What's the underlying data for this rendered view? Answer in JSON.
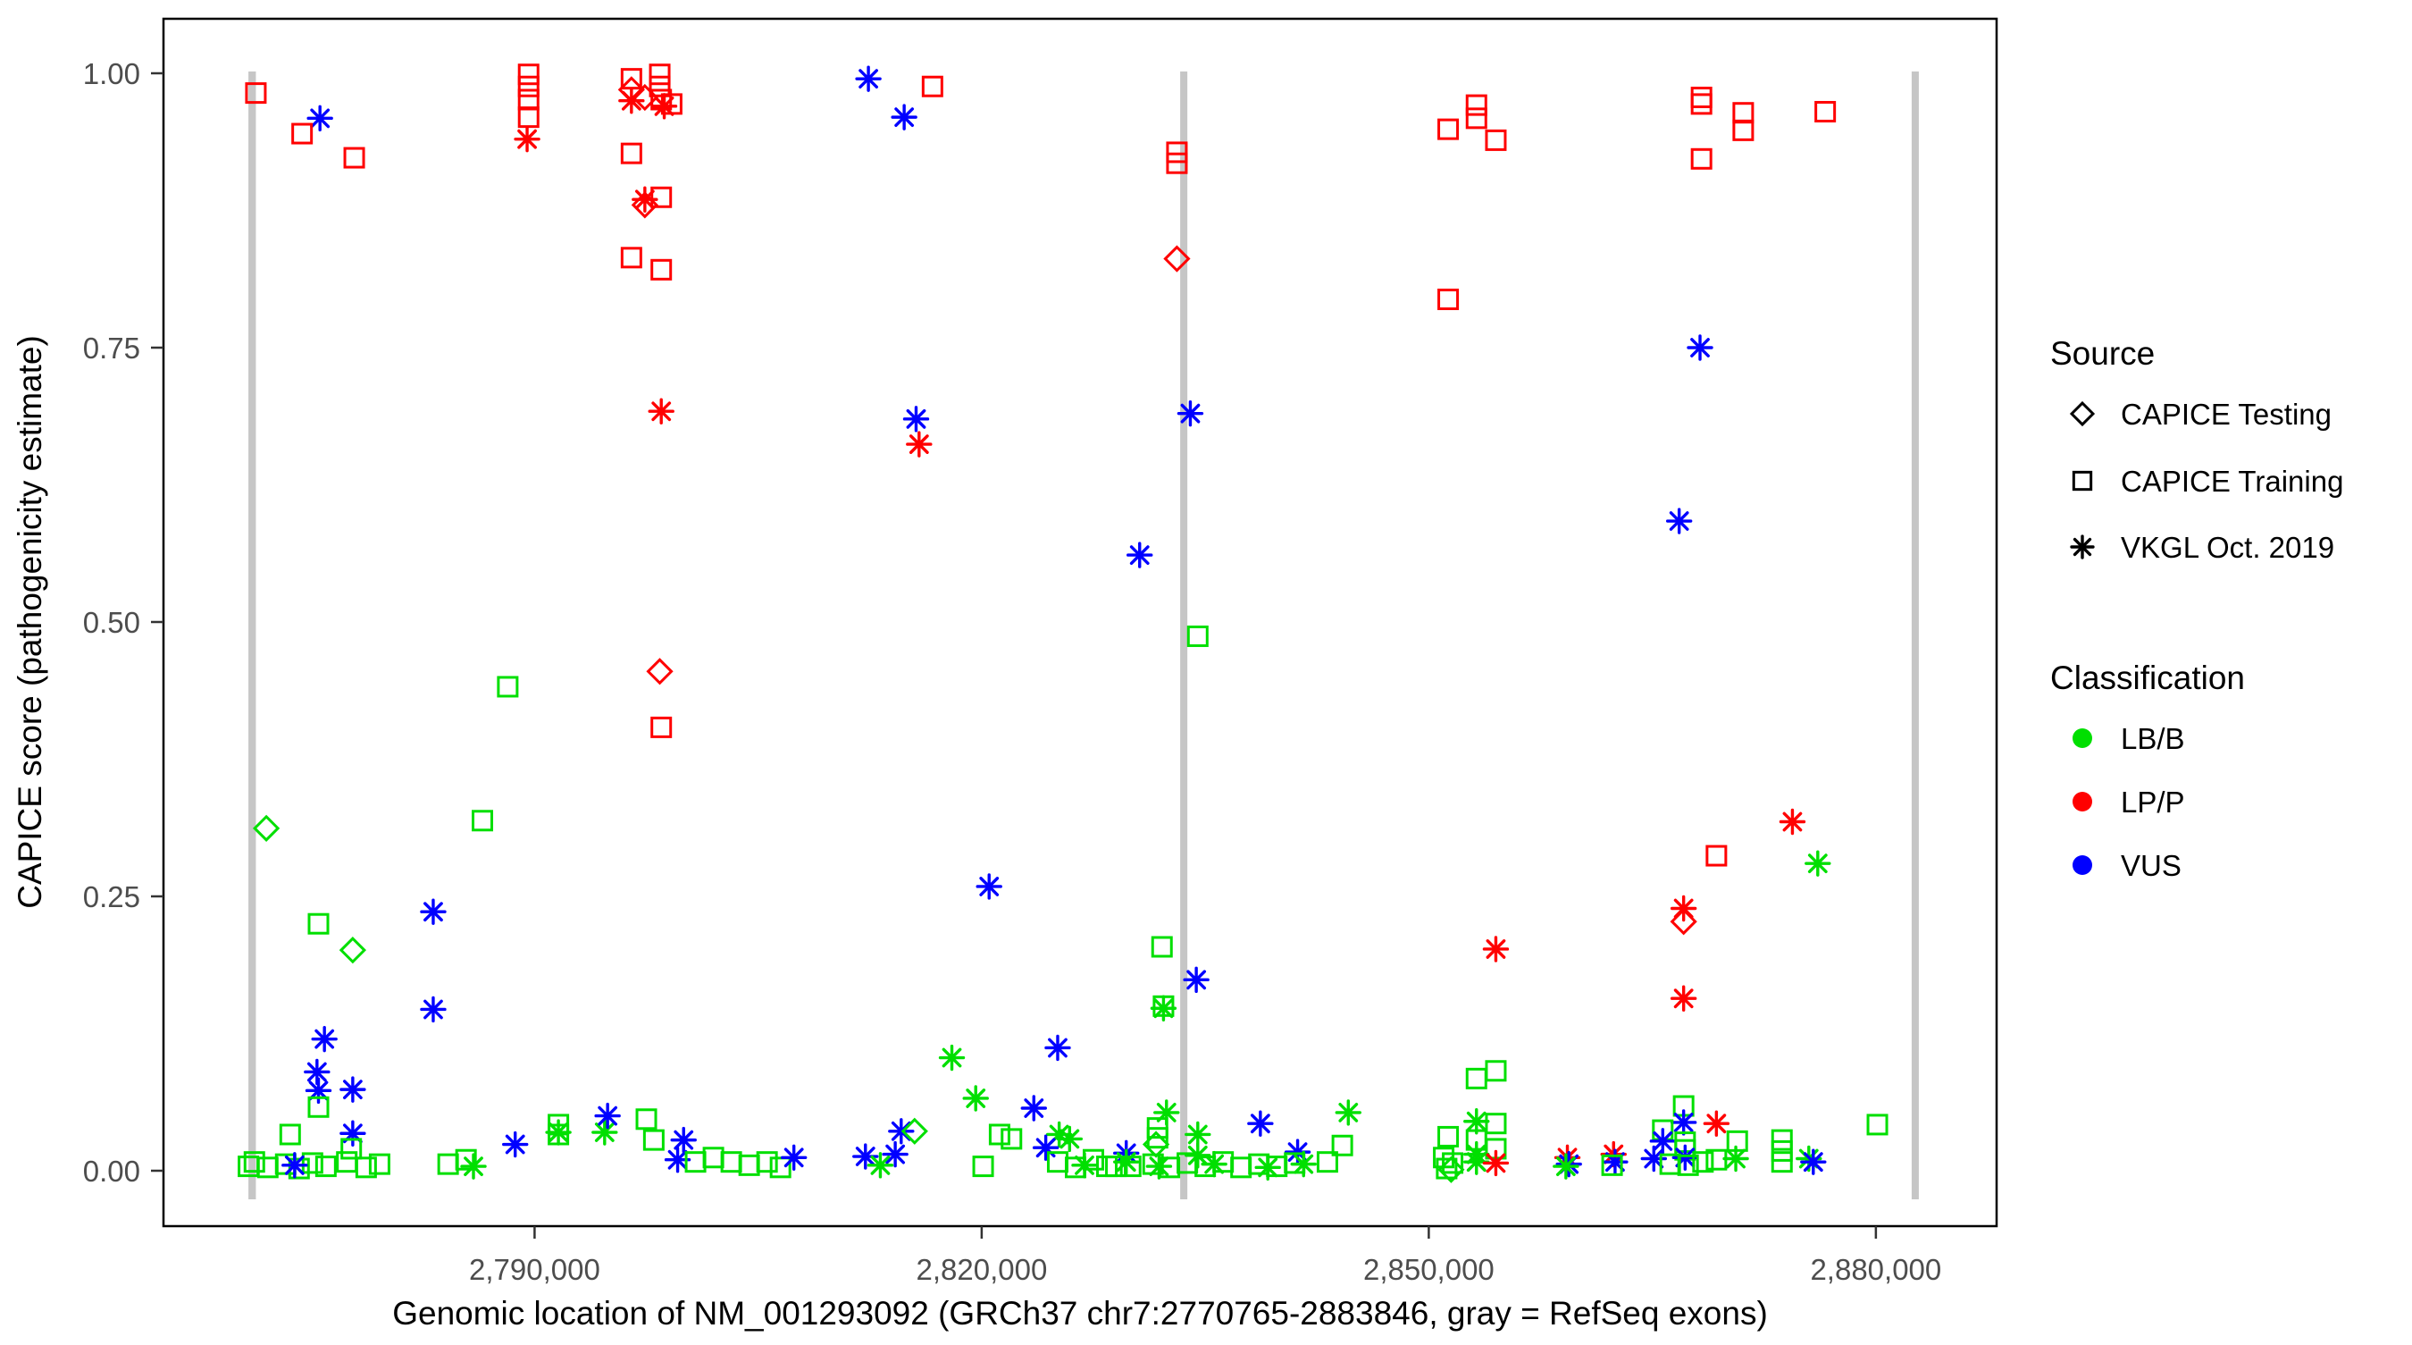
{
  "figure": {
    "xlabel": "Genomic location of NM_001293092 (GRCh37 chr7:2770765-2883846, gray = RefSeq exons)",
    "ylabel": "CAPICE score (pathogenicity estimate)"
  },
  "legend": {
    "source": {
      "title": "Source",
      "items": [
        {
          "shape": "diamond",
          "label": "CAPICE Testing"
        },
        {
          "shape": "square",
          "label": "CAPICE Training"
        },
        {
          "shape": "asterisk",
          "label": "VKGL Oct. 2019"
        }
      ]
    },
    "classification": {
      "title": "Classification",
      "items": [
        {
          "label": "LB/B",
          "color": "#00DF00"
        },
        {
          "label": "LP/P",
          "color": "#FF0000"
        },
        {
          "label": "VUS",
          "color": "#0000FF"
        }
      ]
    }
  },
  "chart_data": {
    "type": "scatter",
    "title": "",
    "xlabel": "Genomic location of NM_001293092 (GRCh37 chr7:2770765-2883846, gray = RefSeq exons)",
    "ylabel": "CAPICE score (pathogenicity estimate)",
    "x_domain": [
      2765100,
      2888100
    ],
    "y_domain": [
      -0.05,
      1.05
    ],
    "grid": false,
    "legend_position": "right",
    "x_ticks": [
      {
        "v": 2790000,
        "label": "2,790,000"
      },
      {
        "v": 2820000,
        "label": "2,820,000"
      },
      {
        "v": 2850000,
        "label": "2,850,000"
      },
      {
        "v": 2880000,
        "label": "2,880,000"
      }
    ],
    "y_ticks": [
      {
        "v": 0.0,
        "label": "0.00"
      },
      {
        "v": 0.25,
        "label": "0.25"
      },
      {
        "v": 0.5,
        "label": "0.50"
      },
      {
        "v": 0.75,
        "label": "0.75"
      },
      {
        "v": 1.0,
        "label": "1.00"
      }
    ],
    "exon_color": "#C6C6C6",
    "exons": [
      {
        "start": 2770800,
        "end": 2771300
      },
      {
        "start": 2833320,
        "end": 2833800
      },
      {
        "start": 2882400,
        "end": 2882880
      }
    ],
    "class_colors": {
      "LB/B": "#00DF00",
      "LP/P": "#FF0000",
      "VUS": "#0000FF"
    },
    "shape_sources": {
      "square": "CAPICE Training",
      "diamond": "CAPICE Testing",
      "asterisk": "VKGL Oct. 2019"
    },
    "points_columns": [
      "genomic_position",
      "capice_score",
      "source_shape",
      "classification"
    ],
    "points": [
      [
        2771300,
        0.982,
        "square",
        "LP/P"
      ],
      [
        2775600,
        0.959,
        "asterisk",
        "VUS"
      ],
      [
        2774400,
        0.945,
        "square",
        "LP/P"
      ],
      [
        2777900,
        0.923,
        "square",
        "LP/P"
      ],
      [
        2772000,
        0.312,
        "diamond",
        "LB/B"
      ],
      [
        2775500,
        0.225,
        "square",
        "LB/B"
      ],
      [
        2777800,
        0.201,
        "diamond",
        "LB/B"
      ],
      [
        2783200,
        0.236,
        "asterisk",
        "VUS"
      ],
      [
        2783200,
        0.147,
        "asterisk",
        "VUS"
      ],
      [
        2775900,
        0.12,
        "asterisk",
        "VUS"
      ],
      [
        2775400,
        0.09,
        "asterisk",
        "VUS"
      ],
      [
        2775500,
        0.073,
        "asterisk",
        "VUS"
      ],
      [
        2775500,
        0.058,
        "square",
        "LB/B"
      ],
      [
        2777800,
        0.074,
        "asterisk",
        "VUS"
      ],
      [
        2777800,
        0.034,
        "asterisk",
        "VUS"
      ],
      [
        2773600,
        0.033,
        "square",
        "LB/B"
      ],
      [
        2777700,
        0.02,
        "square",
        "LB/B"
      ],
      [
        2770800,
        0.004,
        "square",
        "LB/B"
      ],
      [
        2771200,
        0.008,
        "square",
        "LB/B"
      ],
      [
        2772100,
        0.003,
        "square",
        "LB/B"
      ],
      [
        2773300,
        0.006,
        "square",
        "LB/B"
      ],
      [
        2774200,
        0.002,
        "square",
        "LB/B"
      ],
      [
        2775100,
        0.007,
        "square",
        "LB/B"
      ],
      [
        2776000,
        0.004,
        "square",
        "LB/B"
      ],
      [
        2777400,
        0.008,
        "square",
        "LB/B"
      ],
      [
        2778700,
        0.003,
        "square",
        "LB/B"
      ],
      [
        2779600,
        0.006,
        "square",
        "LB/B"
      ],
      [
        2773900,
        0.005,
        "asterisk",
        "VUS"
      ],
      [
        2784200,
        0.006,
        "square",
        "LB/B"
      ],
      [
        2785400,
        0.01,
        "square",
        "LB/B"
      ],
      [
        2785900,
        0.004,
        "asterisk",
        "LB/B"
      ],
      [
        2786500,
        0.319,
        "square",
        "LB/B"
      ],
      [
        2788200,
        0.441,
        "square",
        "LB/B"
      ],
      [
        2789600,
        0.999,
        "square",
        "LP/P"
      ],
      [
        2789600,
        0.988,
        "square",
        "LP/P"
      ],
      [
        2789600,
        0.976,
        "square",
        "LP/P"
      ],
      [
        2789600,
        0.96,
        "square",
        "LP/P"
      ],
      [
        2789500,
        0.94,
        "asterisk",
        "LP/P"
      ],
      [
        2788700,
        0.024,
        "asterisk",
        "VUS"
      ],
      [
        2791600,
        0.042,
        "square",
        "LB/B"
      ],
      [
        2791600,
        0.033,
        "square",
        "LB/B"
      ],
      [
        2791600,
        0.035,
        "asterisk",
        "LB/B"
      ],
      [
        2794700,
        0.035,
        "asterisk",
        "LB/B"
      ],
      [
        2794900,
        0.05,
        "asterisk",
        "VUS"
      ],
      [
        2798400,
        0.999,
        "square",
        "LP/P"
      ],
      [
        2798400,
        0.988,
        "square",
        "LP/P"
      ],
      [
        2798500,
        0.976,
        "square",
        "LP/P"
      ],
      [
        2796500,
        0.995,
        "square",
        "LP/P"
      ],
      [
        2796500,
        0.985,
        "diamond",
        "LP/P"
      ],
      [
        2796500,
        0.975,
        "asterisk",
        "LP/P"
      ],
      [
        2797400,
        0.978,
        "diamond",
        "LP/P"
      ],
      [
        2798700,
        0.97,
        "asterisk",
        "LP/P"
      ],
      [
        2799200,
        0.972,
        "square",
        "LP/P"
      ],
      [
        2796500,
        0.927,
        "square",
        "LP/P"
      ],
      [
        2798500,
        0.887,
        "square",
        "LP/P"
      ],
      [
        2797400,
        0.885,
        "asterisk",
        "LP/P"
      ],
      [
        2797400,
        0.88,
        "diamond",
        "LP/P"
      ],
      [
        2796500,
        0.832,
        "square",
        "LP/P"
      ],
      [
        2798500,
        0.821,
        "square",
        "LP/P"
      ],
      [
        2798500,
        0.692,
        "asterisk",
        "LP/P"
      ],
      [
        2798400,
        0.455,
        "diamond",
        "LP/P"
      ],
      [
        2798500,
        0.404,
        "square",
        "LP/P"
      ],
      [
        2797500,
        0.047,
        "square",
        "LB/B"
      ],
      [
        2798000,
        0.028,
        "square",
        "LB/B"
      ],
      [
        2800000,
        0.028,
        "asterisk",
        "VUS"
      ],
      [
        2799600,
        0.01,
        "asterisk",
        "VUS"
      ],
      [
        2800800,
        0.008,
        "square",
        "LB/B"
      ],
      [
        2802000,
        0.012,
        "square",
        "LB/B"
      ],
      [
        2803200,
        0.008,
        "square",
        "LB/B"
      ],
      [
        2804400,
        0.005,
        "square",
        "LB/B"
      ],
      [
        2805600,
        0.008,
        "square",
        "LB/B"
      ],
      [
        2806500,
        0.003,
        "square",
        "LB/B"
      ],
      [
        2807400,
        0.012,
        "asterisk",
        "VUS"
      ],
      [
        2812400,
        0.995,
        "asterisk",
        "VUS"
      ],
      [
        2814800,
        0.96,
        "asterisk",
        "VUS"
      ],
      [
        2816700,
        0.988,
        "square",
        "LP/P"
      ],
      [
        2815600,
        0.685,
        "asterisk",
        "VUS"
      ],
      [
        2815800,
        0.662,
        "asterisk",
        "LP/P"
      ],
      [
        2820500,
        0.259,
        "asterisk",
        "VUS"
      ],
      [
        2818000,
        0.103,
        "asterisk",
        "LB/B"
      ],
      [
        2825100,
        0.112,
        "asterisk",
        "VUS"
      ],
      [
        2819600,
        0.066,
        "asterisk",
        "LB/B"
      ],
      [
        2823500,
        0.057,
        "asterisk",
        "VUS"
      ],
      [
        2814600,
        0.036,
        "asterisk",
        "VUS"
      ],
      [
        2815500,
        0.036,
        "diamond",
        "LB/B"
      ],
      [
        2821200,
        0.033,
        "square",
        "LB/B"
      ],
      [
        2825200,
        0.033,
        "asterisk",
        "LB/B"
      ],
      [
        2812200,
        0.013,
        "asterisk",
        "VUS"
      ],
      [
        2814200,
        0.015,
        "asterisk",
        "VUS"
      ],
      [
        2813200,
        0.005,
        "asterisk",
        "LB/B"
      ],
      [
        2822000,
        0.029,
        "square",
        "LB/B"
      ],
      [
        2824300,
        0.021,
        "asterisk",
        "VUS"
      ],
      [
        2825900,
        0.029,
        "asterisk",
        "LB/B"
      ],
      [
        2825100,
        0.008,
        "square",
        "LB/B"
      ],
      [
        2826300,
        0.003,
        "square",
        "LB/B"
      ],
      [
        2827500,
        0.01,
        "square",
        "LB/B"
      ],
      [
        2828400,
        0.004,
        "square",
        "LB/B"
      ],
      [
        2826900,
        0.005,
        "asterisk",
        "LB/B"
      ],
      [
        2820100,
        0.004,
        "square",
        "LB/B"
      ],
      [
        2829000,
        0.004,
        "square",
        "LB/B"
      ],
      [
        2833100,
        0.928,
        "square",
        "LP/P"
      ],
      [
        2833100,
        0.918,
        "square",
        "LP/P"
      ],
      [
        2833100,
        0.831,
        "diamond",
        "LP/P"
      ],
      [
        2834000,
        0.69,
        "asterisk",
        "VUS"
      ],
      [
        2830600,
        0.561,
        "asterisk",
        "VUS"
      ],
      [
        2834500,
        0.487,
        "square",
        "LB/B"
      ],
      [
        2832100,
        0.204,
        "square",
        "LB/B"
      ],
      [
        2834400,
        0.174,
        "asterisk",
        "VUS"
      ],
      [
        2832200,
        0.15,
        "square",
        "LB/B"
      ],
      [
        2832200,
        0.148,
        "asterisk",
        "LB/B"
      ],
      [
        2829700,
        0.016,
        "asterisk",
        "VUS"
      ],
      [
        2829700,
        0.008,
        "asterisk",
        "LB/B"
      ],
      [
        2830000,
        0.004,
        "square",
        "LB/B"
      ],
      [
        2831800,
        0.039,
        "square",
        "LB/B"
      ],
      [
        2831800,
        0.03,
        "square",
        "LB/B"
      ],
      [
        2831700,
        0.024,
        "diamond",
        "LB/B"
      ],
      [
        2832400,
        0.053,
        "asterisk",
        "LB/B"
      ],
      [
        2834500,
        0.033,
        "asterisk",
        "LB/B"
      ],
      [
        2834500,
        0.014,
        "asterisk",
        "LB/B"
      ],
      [
        2838700,
        0.043,
        "asterisk",
        "VUS"
      ],
      [
        2841200,
        0.017,
        "asterisk",
        "VUS"
      ],
      [
        2843200,
        0.008,
        "square",
        "LB/B"
      ],
      [
        2844200,
        0.023,
        "square",
        "LB/B"
      ],
      [
        2844600,
        0.053,
        "asterisk",
        "LB/B"
      ],
      [
        2831500,
        0.006,
        "square",
        "LB/B"
      ],
      [
        2832600,
        0.003,
        "square",
        "LB/B"
      ],
      [
        2833800,
        0.007,
        "square",
        "LB/B"
      ],
      [
        2835000,
        0.004,
        "square",
        "LB/B"
      ],
      [
        2836200,
        0.008,
        "square",
        "LB/B"
      ],
      [
        2837400,
        0.003,
        "square",
        "LB/B"
      ],
      [
        2838600,
        0.006,
        "square",
        "LB/B"
      ],
      [
        2839800,
        0.004,
        "square",
        "LB/B"
      ],
      [
        2841000,
        0.007,
        "square",
        "LB/B"
      ],
      [
        2831900,
        0.004,
        "asterisk",
        "LB/B"
      ],
      [
        2835600,
        0.006,
        "asterisk",
        "LB/B"
      ],
      [
        2839200,
        0.003,
        "asterisk",
        "LB/B"
      ],
      [
        2841600,
        0.006,
        "asterisk",
        "LB/B"
      ],
      [
        2853200,
        0.971,
        "square",
        "LP/P"
      ],
      [
        2853200,
        0.959,
        "square",
        "LP/P"
      ],
      [
        2851300,
        0.949,
        "square",
        "LP/P"
      ],
      [
        2854500,
        0.939,
        "square",
        "LP/P"
      ],
      [
        2851300,
        0.794,
        "square",
        "LP/P"
      ],
      [
        2854500,
        0.202,
        "asterisk",
        "LP/P"
      ],
      [
        2853200,
        0.084,
        "square",
        "LB/B"
      ],
      [
        2854500,
        0.091,
        "square",
        "LB/B"
      ],
      [
        2853200,
        0.045,
        "asterisk",
        "LB/B"
      ],
      [
        2854500,
        0.043,
        "square",
        "LB/B"
      ],
      [
        2851300,
        0.031,
        "square",
        "LB/B"
      ],
      [
        2853200,
        0.028,
        "square",
        "LB/B"
      ],
      [
        2853200,
        0.015,
        "asterisk",
        "LB/B"
      ],
      [
        2854500,
        0.02,
        "square",
        "LB/B"
      ],
      [
        2851000,
        0.012,
        "square",
        "LB/B"
      ],
      [
        2851600,
        0.007,
        "square",
        "LB/B"
      ],
      [
        2851500,
        0.001,
        "diamond",
        "LB/B"
      ],
      [
        2851200,
        0.002,
        "square",
        "LB/B"
      ],
      [
        2853200,
        0.008,
        "asterisk",
        "LB/B"
      ],
      [
        2854500,
        0.007,
        "asterisk",
        "LP/P"
      ],
      [
        2859300,
        0.012,
        "asterisk",
        "LP/P"
      ],
      [
        2859400,
        0.006,
        "asterisk",
        "VUS"
      ],
      [
        2859200,
        0.004,
        "asterisk",
        "LB/B"
      ],
      [
        2862400,
        0.015,
        "asterisk",
        "LP/P"
      ],
      [
        2862500,
        0.008,
        "asterisk",
        "VUS"
      ],
      [
        2862300,
        0.005,
        "square",
        "LB/B"
      ],
      [
        2868300,
        0.978,
        "square",
        "LP/P"
      ],
      [
        2868300,
        0.972,
        "square",
        "LP/P"
      ],
      [
        2871100,
        0.964,
        "square",
        "LP/P"
      ],
      [
        2871100,
        0.948,
        "square",
        "LP/P"
      ],
      [
        2868300,
        0.922,
        "square",
        "LP/P"
      ],
      [
        2868200,
        0.75,
        "asterisk",
        "VUS"
      ],
      [
        2866800,
        0.592,
        "asterisk",
        "VUS"
      ],
      [
        2867100,
        0.239,
        "asterisk",
        "LP/P"
      ],
      [
        2867100,
        0.227,
        "diamond",
        "LP/P"
      ],
      [
        2867100,
        0.157,
        "asterisk",
        "LP/P"
      ],
      [
        2869300,
        0.287,
        "square",
        "LP/P"
      ],
      [
        2874400,
        0.318,
        "asterisk",
        "LP/P"
      ],
      [
        2876100,
        0.28,
        "asterisk",
        "LB/B"
      ],
      [
        2876600,
        0.965,
        "square",
        "LP/P"
      ],
      [
        2867100,
        0.059,
        "square",
        "LB/B"
      ],
      [
        2867100,
        0.044,
        "asterisk",
        "VUS"
      ],
      [
        2869300,
        0.043,
        "asterisk",
        "LP/P"
      ],
      [
        2865700,
        0.037,
        "square",
        "LB/B"
      ],
      [
        2865700,
        0.027,
        "asterisk",
        "VUS"
      ],
      [
        2867200,
        0.026,
        "square",
        "LB/B"
      ],
      [
        2867200,
        0.019,
        "square",
        "LB/B"
      ],
      [
        2867200,
        0.012,
        "asterisk",
        "VUS"
      ],
      [
        2865100,
        0.011,
        "asterisk",
        "VUS"
      ],
      [
        2866200,
        0.006,
        "square",
        "LB/B"
      ],
      [
        2867400,
        0.005,
        "square",
        "LB/B"
      ],
      [
        2868400,
        0.008,
        "square",
        "LB/B"
      ],
      [
        2869300,
        0.01,
        "square",
        "LB/B"
      ],
      [
        2870700,
        0.027,
        "square",
        "LB/B"
      ],
      [
        2870600,
        0.011,
        "asterisk",
        "LB/B"
      ],
      [
        2873700,
        0.028,
        "square",
        "LB/B"
      ],
      [
        2873700,
        0.018,
        "square",
        "LB/B"
      ],
      [
        2873700,
        0.008,
        "square",
        "LB/B"
      ],
      [
        2875500,
        0.011,
        "asterisk",
        "LB/B"
      ],
      [
        2875800,
        0.008,
        "asterisk",
        "VUS"
      ],
      [
        2880100,
        0.042,
        "square",
        "LB/B"
      ]
    ]
  }
}
